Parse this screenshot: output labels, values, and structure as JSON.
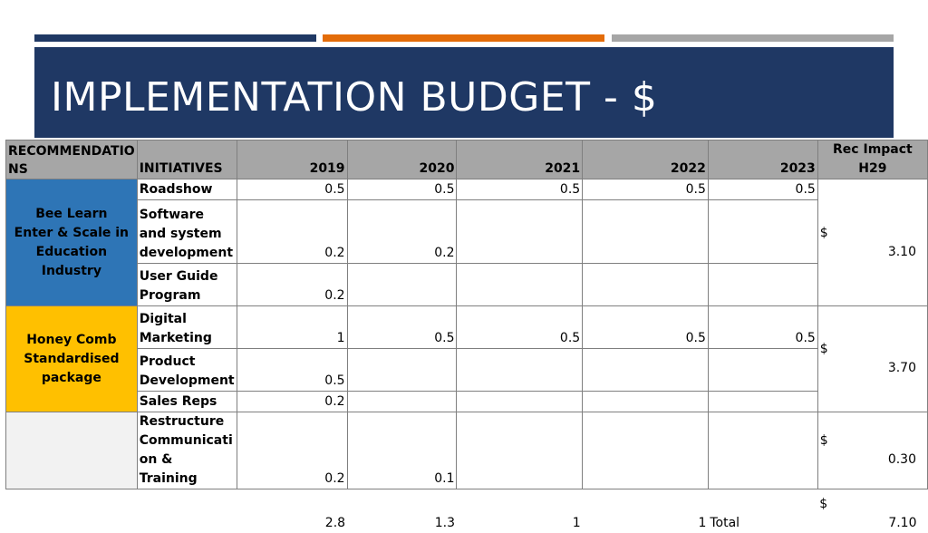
{
  "slide": {
    "title": "IMPLEMENTATION BUDGET - $"
  },
  "table": {
    "headers": {
      "recommendations": "RECOMMENDATIO NS",
      "initiatives": "INITIATIVES",
      "y2019": "2019",
      "y2020": "2020",
      "y2021": "2021",
      "y2022": "2022",
      "y2023": "2023",
      "impact": "Rec Impact H29"
    },
    "groups": [
      {
        "name_line1": "Bee Learn",
        "name_line2": "Enter & Scale in Education Industry",
        "impact_symbol": "$",
        "impact_value": "3.10",
        "rows": [
          {
            "initiative": "Roadshow",
            "y2019": "0.5",
            "y2020": "0.5",
            "y2021": "0.5",
            "y2022": "0.5",
            "y2023": "0.5"
          },
          {
            "initiative": "Software and system development",
            "y2019": "0.2",
            "y2020": "0.2",
            "y2021": "",
            "y2022": "",
            "y2023": ""
          },
          {
            "initiative": "User Guide Program",
            "y2019": "0.2",
            "y2020": "",
            "y2021": "",
            "y2022": "",
            "y2023": ""
          }
        ]
      },
      {
        "name_line1": "Honey Comb Standardised package",
        "name_line2": "",
        "impact_symbol": "$",
        "impact_value": "3.70",
        "rows": [
          {
            "initiative": "Digital Marketing",
            "y2019": "1",
            "y2020": "0.5",
            "y2021": "0.5",
            "y2022": "0.5",
            "y2023": "0.5"
          },
          {
            "initiative": "Product Development",
            "y2019": "0.5",
            "y2020": "",
            "y2021": "",
            "y2022": "",
            "y2023": ""
          },
          {
            "initiative": "Sales Reps",
            "y2019": "0.2",
            "y2020": "",
            "y2021": "",
            "y2022": "",
            "y2023": ""
          }
        ]
      },
      {
        "name_line1": "",
        "name_line2": "",
        "impact_symbol": "$",
        "impact_value": "0.30",
        "rows": [
          {
            "initiative": "Restructure Communicati on & Training",
            "y2019": "0.2",
            "y2020": "0.1",
            "y2021": "",
            "y2022": "",
            "y2023": ""
          }
        ]
      }
    ],
    "totals": {
      "y2019": "2.8",
      "y2020": "1.3",
      "y2021": "1",
      "y2022": "1",
      "label": "Total",
      "impact_symbol": "$",
      "impact_value": "7.10"
    }
  },
  "colors": {
    "banner": "#1f3864",
    "accent_orange": "#e36c09",
    "accent_gray": "#a6a6a6",
    "group_blue": "#2e75b6",
    "group_gold": "#ffc000",
    "header_gray": "#a6a6a6"
  }
}
